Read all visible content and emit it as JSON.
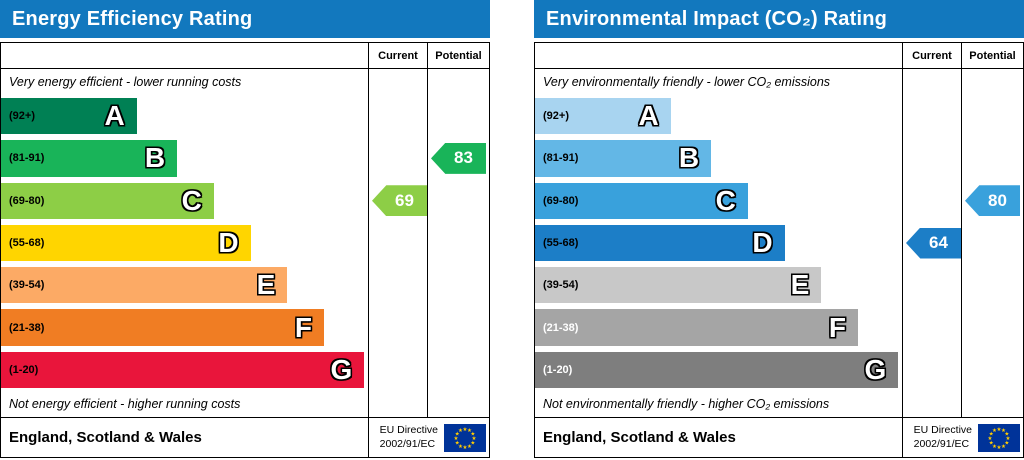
{
  "chart_data": [
    {
      "type": "bar",
      "title": "Energy Efficiency Rating",
      "categories": [
        "A (92+)",
        "B (81-91)",
        "C (69-80)",
        "D (55-68)",
        "E (39-54)",
        "F (21-38)",
        "G (1-20)"
      ],
      "current": {
        "value": 69,
        "band": "C"
      },
      "potential": {
        "value": 83,
        "band": "B"
      },
      "note_top": "Very energy efficient - lower running costs",
      "note_bottom": "Not energy efficient - higher running costs",
      "region": "England, Scotland & Wales",
      "directive": "EU Directive 2002/91/EC"
    },
    {
      "type": "bar",
      "title": "Environmental Impact (CO₂) Rating",
      "categories": [
        "A (92+)",
        "B (81-91)",
        "C (69-80)",
        "D (55-68)",
        "E (39-54)",
        "F (21-38)",
        "G (1-20)"
      ],
      "current": {
        "value": 64,
        "band": "D"
      },
      "potential": {
        "value": 80,
        "band": "C"
      },
      "note_top": "Very environmentally friendly - lower CO₂ emissions",
      "note_bottom": "Not environmentally friendly - higher CO₂ emissions",
      "region": "England, Scotland & Wales",
      "directive": "EU Directive 2002/91/EC"
    }
  ],
  "panels": [
    {
      "title": "Energy Efficiency Rating",
      "header_color": "#1278be",
      "col_current": "Current",
      "col_potential": "Potential",
      "top_note": "Very energy efficient - lower running costs",
      "bottom_note": "Not energy efficient - higher running costs",
      "bands": [
        {
          "range": "(92+)",
          "letter": "A",
          "color": "#008054",
          "width_pct": 37,
          "label_color": "#000000"
        },
        {
          "range": "(81-91)",
          "letter": "B",
          "color": "#19b459",
          "width_pct": 48,
          "label_color": "#000000"
        },
        {
          "range": "(69-80)",
          "letter": "C",
          "color": "#8dce46",
          "width_pct": 58,
          "label_color": "#000000"
        },
        {
          "range": "(55-68)",
          "letter": "D",
          "color": "#ffd500",
          "width_pct": 68,
          "label_color": "#000000"
        },
        {
          "range": "(39-54)",
          "letter": "E",
          "color": "#fcaa65",
          "width_pct": 78,
          "label_color": "#000000"
        },
        {
          "range": "(21-38)",
          "letter": "F",
          "color": "#f07d23",
          "width_pct": 88,
          "label_color": "#000000"
        },
        {
          "range": "(1-20)",
          "letter": "G",
          "color": "#e9153b",
          "width_pct": 99,
          "label_color": "#000000"
        }
      ],
      "current": {
        "value": "69",
        "band_index": 2,
        "color": "#8dce46"
      },
      "potential": {
        "value": "83",
        "band_index": 1,
        "color": "#19b459"
      },
      "footer_region": "England, Scotland & Wales",
      "directive_line1": "EU Directive",
      "directive_line2": "2002/91/EC",
      "flag_colors": {
        "background": "#003399",
        "stars": "#ffcc00"
      }
    },
    {
      "title": "Environmental Impact (CO₂) Rating",
      "header_color": "#1278be",
      "col_current": "Current",
      "col_potential": "Potential",
      "top_note": "Very environmentally friendly - lower CO₂ emissions",
      "bottom_note": "Not environmentally friendly - higher CO₂ emissions",
      "bands": [
        {
          "range": "(92+)",
          "letter": "A",
          "color": "#a8d4f0",
          "width_pct": 37,
          "label_color": "#000000"
        },
        {
          "range": "(81-91)",
          "letter": "B",
          "color": "#63b7e6",
          "width_pct": 48,
          "label_color": "#000000"
        },
        {
          "range": "(69-80)",
          "letter": "C",
          "color": "#39a1dc",
          "width_pct": 58,
          "label_color": "#000000"
        },
        {
          "range": "(55-68)",
          "letter": "D",
          "color": "#1c7ec7",
          "width_pct": 68,
          "label_color": "#000000"
        },
        {
          "range": "(39-54)",
          "letter": "E",
          "color": "#c8c8c8",
          "width_pct": 78,
          "label_color": "#000000"
        },
        {
          "range": "(21-38)",
          "letter": "F",
          "color": "#a5a5a5",
          "width_pct": 88,
          "label_color": "#ffffff"
        },
        {
          "range": "(1-20)",
          "letter": "G",
          "color": "#7e7e7e",
          "width_pct": 99,
          "label_color": "#ffffff"
        }
      ],
      "current": {
        "value": "64",
        "band_index": 3,
        "color": "#1c7ec7"
      },
      "potential": {
        "value": "80",
        "band_index": 2,
        "color": "#39a1dc"
      },
      "footer_region": "England, Scotland & Wales",
      "directive_line1": "EU Directive",
      "directive_line2": "2002/91/EC",
      "flag_colors": {
        "background": "#003399",
        "stars": "#ffcc00"
      }
    }
  ]
}
